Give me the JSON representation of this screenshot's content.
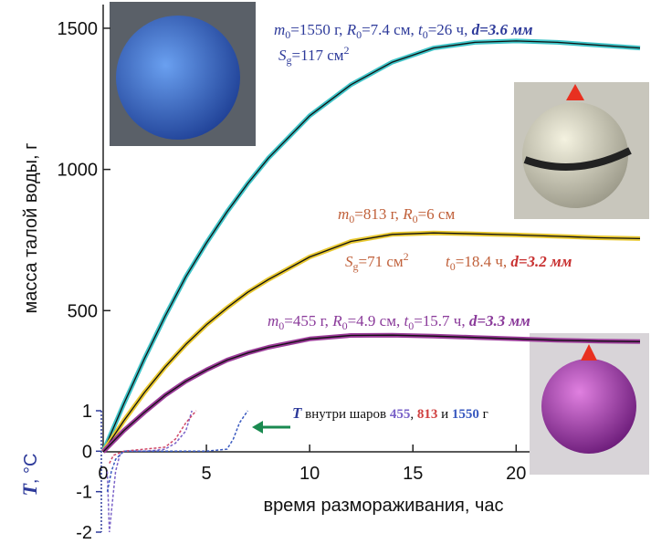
{
  "chart_data": {
    "type": "line",
    "ylabel": "масса талой воды, г",
    "xlabel": "время размораживания, час",
    "y2label": [
      "T",
      ", °C"
    ],
    "xlim": [
      0,
      26
    ],
    "ylim": [
      0,
      1600
    ],
    "y2lim": [
      -2,
      1
    ],
    "xticks": [
      0,
      5,
      10,
      15,
      20
    ],
    "yticks": [
      500,
      1000,
      1500
    ],
    "y2ticks": [
      1,
      0,
      -1,
      -2
    ],
    "series": [
      {
        "color": "#3fc4c8",
        "x": [
          0,
          1,
          2,
          3,
          4,
          5,
          6,
          7,
          8,
          10,
          12,
          14,
          16,
          18,
          20,
          22,
          24,
          26
        ],
        "values": [
          0,
          170,
          330,
          480,
          620,
          740,
          850,
          950,
          1040,
          1190,
          1300,
          1380,
          1430,
          1450,
          1455,
          1450,
          1440,
          1430
        ]
      },
      {
        "color": "#e8c830",
        "x": [
          0,
          1,
          2,
          3,
          4,
          5,
          6,
          7,
          8,
          10,
          12,
          14,
          16,
          18,
          20,
          22,
          24,
          26
        ],
        "values": [
          0,
          110,
          210,
          300,
          380,
          450,
          510,
          565,
          610,
          690,
          745,
          770,
          775,
          772,
          768,
          763,
          758,
          755
        ]
      },
      {
        "color": "#9a3a98",
        "x": [
          0,
          1,
          2,
          3,
          4,
          5,
          6,
          7,
          8,
          10,
          12,
          14,
          16,
          18,
          20,
          22,
          24,
          26
        ],
        "values": [
          0,
          75,
          140,
          200,
          250,
          290,
          325,
          350,
          370,
          400,
          412,
          413,
          410,
          405,
          400,
          395,
          392,
          390
        ]
      },
      {
        "color": "#7a62c8",
        "axis": "y2",
        "x": [
          0.2,
          0.3,
          0.4,
          0.6,
          0.8,
          1,
          1.5,
          2,
          2.5,
          3,
          3.5,
          4,
          4.3
        ],
        "values": [
          -0.5,
          -2,
          -1.5,
          -0.5,
          -0.1,
          0,
          0,
          0,
          0.02,
          0.05,
          0.2,
          0.5,
          1
        ]
      },
      {
        "color": "#d04868",
        "axis": "y2",
        "x": [
          0.3,
          0.5,
          1,
          2,
          3,
          3.5,
          4,
          4.5
        ],
        "values": [
          -0.3,
          -0.1,
          0,
          0.05,
          0.1,
          0.3,
          0.7,
          1
        ]
      },
      {
        "color": "#3a5ac0",
        "axis": "y2",
        "x": [
          0.2,
          0.4,
          0.6,
          1,
          2,
          4,
          5,
          6,
          6.3,
          6.6,
          7
        ],
        "values": [
          -1,
          -0.5,
          -0.2,
          0,
          0,
          0,
          0,
          0.05,
          0.3,
          0.7,
          1
        ]
      }
    ],
    "annotations": [
      [
        "m",
        "0",
        "=1550 г, ",
        "R",
        "0",
        "=7.4 см, ",
        "t",
        "0",
        "=26 ч, ",
        "d=3.6 мм"
      ],
      [
        "S",
        "g",
        "=117 см",
        "2"
      ],
      [
        "m",
        "0",
        "=813 г, ",
        "R",
        "0",
        "=6 см"
      ],
      [
        "S",
        "g",
        "=71 см",
        "2"
      ],
      [
        "t",
        "0",
        "=18.4 ч, ",
        "d=3.2 мм"
      ],
      [
        "m",
        "0",
        "=455 г, ",
        "R",
        "0",
        "=4.9 см, ",
        "t",
        "0",
        "=15.7 ч, ",
        "d=3.3 мм"
      ],
      [
        "T",
        " внутри шаров ",
        "455",
        ", ",
        "813",
        " и ",
        "1550",
        " г"
      ]
    ]
  }
}
